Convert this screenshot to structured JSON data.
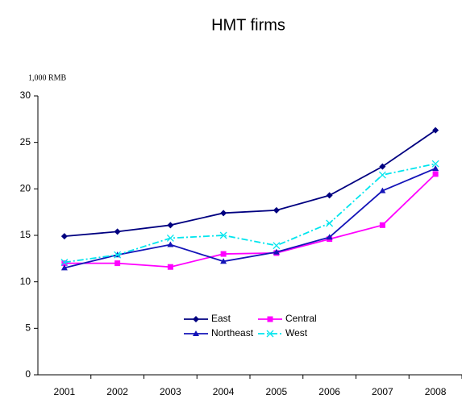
{
  "chart_data": {
    "type": "line",
    "title": "HMT firms",
    "y_label": "1,000 RMB",
    "categories": [
      "2001",
      "2002",
      "2003",
      "2004",
      "2005",
      "2006",
      "2007",
      "2008"
    ],
    "series": [
      {
        "name": "East",
        "color": "#000080",
        "marker": "diamond",
        "dash": "solid",
        "values": [
          14.9,
          15.4,
          16.1,
          17.4,
          17.7,
          19.3,
          22.4,
          26.3
        ]
      },
      {
        "name": "Central",
        "color": "#ff00ff",
        "marker": "square",
        "dash": "solid",
        "values": [
          12.0,
          12.0,
          11.6,
          13.0,
          13.1,
          14.6,
          16.1,
          21.6
        ]
      },
      {
        "name": "Northeast",
        "color": "#1414b8",
        "marker": "triangle",
        "dash": "solid",
        "values": [
          11.5,
          12.9,
          14.0,
          12.2,
          13.2,
          14.8,
          19.8,
          22.2
        ]
      },
      {
        "name": "West",
        "color": "#00e5ee",
        "marker": "x",
        "dash": "dashdot",
        "values": [
          12.1,
          12.9,
          14.7,
          15.0,
          13.9,
          16.3,
          21.5,
          22.7
        ]
      }
    ],
    "ylim": [
      0,
      30
    ],
    "yticks": [
      0,
      5,
      10,
      15,
      20,
      25,
      30
    ],
    "grid": false
  }
}
